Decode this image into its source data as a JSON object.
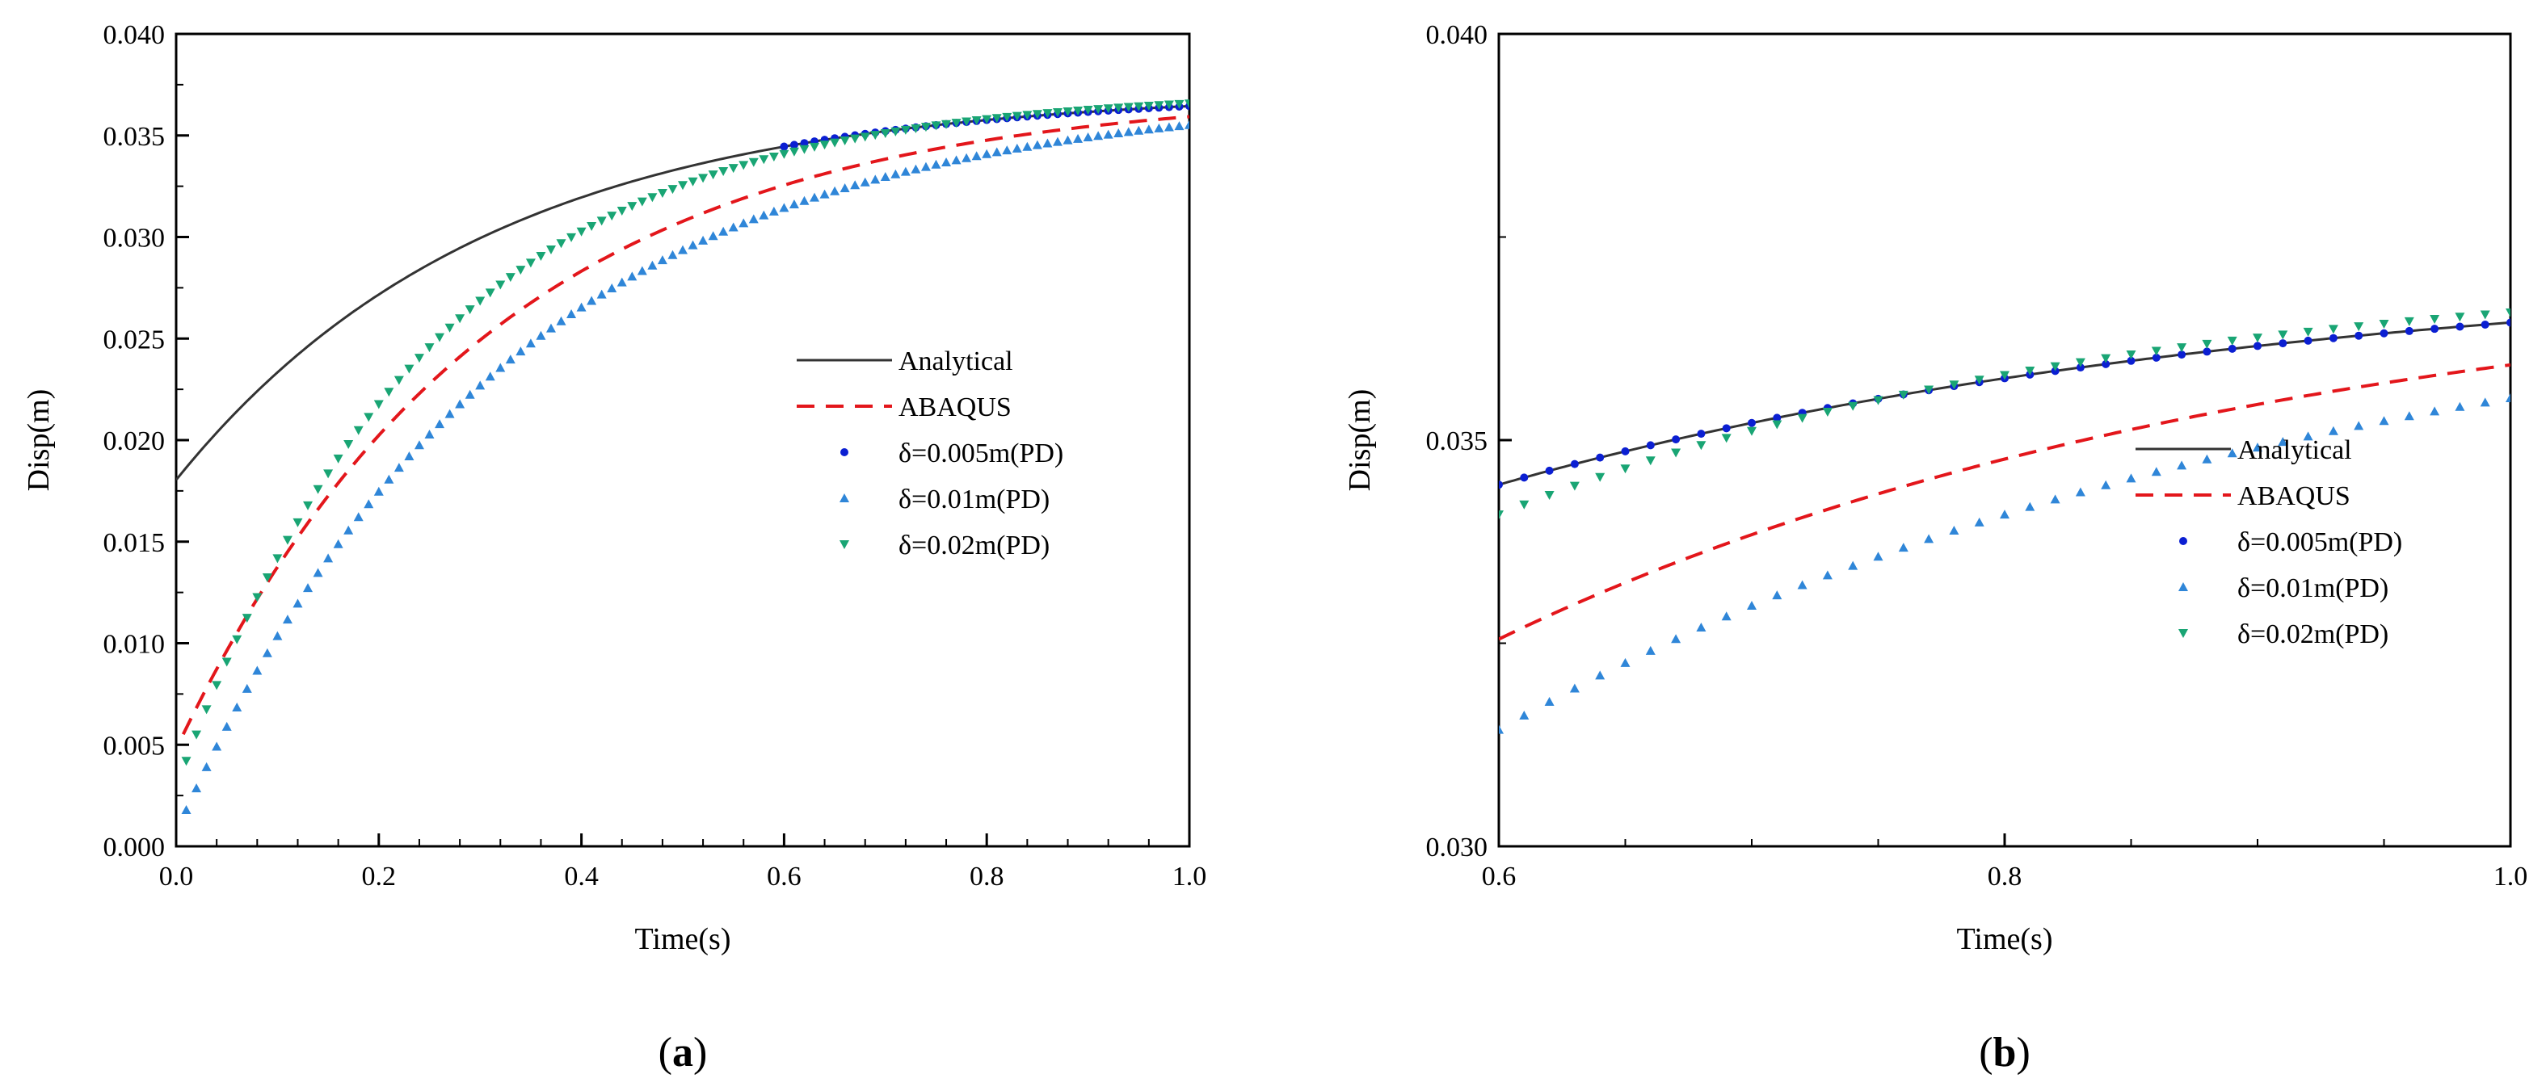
{
  "chart_data": [
    {
      "type": "line",
      "panel_label_prefix": "(",
      "panel_label_letter": "a",
      "panel_label_suffix": ")",
      "xlabel": "Time(s)",
      "ylabel": "Disp(m)",
      "xlim": [
        0.0,
        1.0
      ],
      "ylim": [
        0.0,
        0.04
      ],
      "xticks": [
        "0.0",
        "0.2",
        "0.4",
        "0.6",
        "0.8",
        "1.0"
      ],
      "yticks": [
        "0.000",
        "0.005",
        "0.010",
        "0.015",
        "0.020",
        "0.025",
        "0.030",
        "0.035",
        "0.040"
      ],
      "legend_position": "center-right",
      "series": [
        {
          "name": "Analytical",
          "style": "line",
          "color": "#333333",
          "A": 0.0372,
          "t0": -0.205,
          "tau": 0.309,
          "t_start": 0.0,
          "t_end": 1.0
        },
        {
          "name": "ABAQUS",
          "style": "dashed",
          "color": "#e3161b",
          "A": 0.0372,
          "t0": -0.0426,
          "tau": 0.309,
          "t_start": 0.007,
          "t_end": 1.0
        },
        {
          "name": "δ=0.005m(PD)",
          "style": "circle",
          "color": "#0b1fd2",
          "A": 0.0372,
          "t0": -0.205,
          "tau": 0.309,
          "t_start": 0.6,
          "t_end": 1.0,
          "step": 0.01
        },
        {
          "name": "δ=0.01m(PD)",
          "style": "triangle-up",
          "color": "#2f86d8",
          "A": 0.0372,
          "t0": -0.006,
          "tau": 0.325,
          "t_start": 0.01,
          "t_end": 1.0,
          "step": 0.01
        },
        {
          "name": "δ=0.02m(PD)",
          "style": "triangle-down",
          "color": "#19a574",
          "A": 0.0372,
          "t0": -0.02,
          "tau": 0.25,
          "t_start": 0.01,
          "t_end": 1.0,
          "step": 0.01
        }
      ]
    },
    {
      "type": "line",
      "panel_label_prefix": "(",
      "panel_label_letter": "b",
      "panel_label_suffix": ")",
      "xlabel": "Time(s)",
      "ylabel": "Disp(m)",
      "xlim": [
        0.6,
        1.0
      ],
      "ylim": [
        0.03,
        0.04
      ],
      "xticks": [
        "0.6",
        "0.8",
        "1.0"
      ],
      "yticks": [
        "0.030",
        "0.035",
        "0.040"
      ],
      "legend_position": "center-right",
      "series": [
        {
          "name": "Analytical",
          "style": "line",
          "color": "#333333",
          "A": 0.0372,
          "t0": -0.205,
          "tau": 0.309,
          "t_start": 0.6,
          "t_end": 1.0
        },
        {
          "name": "ABAQUS",
          "style": "dashed",
          "color": "#e3161b",
          "A": 0.0372,
          "t0": -0.0426,
          "tau": 0.309,
          "t_start": 0.6,
          "t_end": 1.0
        },
        {
          "name": "δ=0.005m(PD)",
          "style": "circle",
          "color": "#0b1fd2",
          "A": 0.0372,
          "t0": -0.205,
          "tau": 0.309,
          "t_start": 0.6,
          "t_end": 1.0,
          "step": 0.01
        },
        {
          "name": "δ=0.01m(PD)",
          "style": "triangle-up",
          "color": "#2f86d8",
          "A": 0.0372,
          "t0": -0.006,
          "tau": 0.325,
          "t_start": 0.6,
          "t_end": 1.0,
          "step": 0.01
        },
        {
          "name": "δ=0.02m(PD)",
          "style": "triangle-down",
          "color": "#19a574",
          "A": 0.0372,
          "t0": -0.02,
          "tau": 0.25,
          "t_start": 0.6,
          "t_end": 1.0,
          "step": 0.01
        }
      ]
    }
  ]
}
